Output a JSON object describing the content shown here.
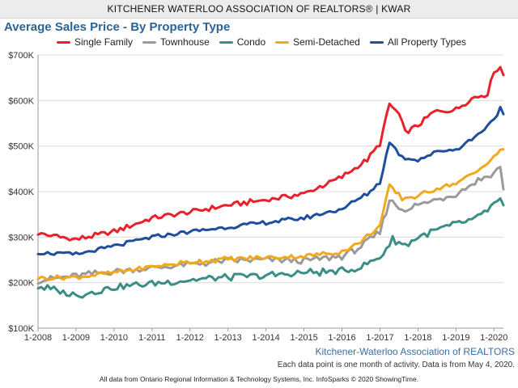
{
  "header": {
    "title": "KITCHENER WATERLOO ASSOCIATION OF REALTORS® | KWAR"
  },
  "source_label": "Kitchener-Waterloo Association of REALTORS",
  "note": "Each data point is one month of activity. Data is from May 4, 2020.",
  "footer": "All data from Ontario Regional Information & Technology Systems, Inc. InfoSparks © 2020 ShowingTime.",
  "chart_data": {
    "type": "line",
    "title": "Average Sales Price - By Property Type",
    "xlabel": "",
    "ylabel": "",
    "ylim": [
      100000,
      700000
    ],
    "xlim": [
      "2008-01",
      "2020-04"
    ],
    "x_ticks": [
      "1-2008",
      "1-2009",
      "1-2010",
      "1-2011",
      "1-2012",
      "1-2013",
      "1-2014",
      "1-2015",
      "1-2016",
      "1-2017",
      "1-2018",
      "1-2019",
      "1-2020"
    ],
    "y_ticks": [
      "$100K",
      "$200K",
      "$300K",
      "$400K",
      "$500K",
      "$600K",
      "$700K"
    ],
    "grid": "horizontal",
    "legend_position": "top",
    "series": [
      {
        "name": "Single Family",
        "color": "#e8212b",
        "keypoints": [
          [
            "2008-01",
            308000
          ],
          [
            "2009-01",
            295000
          ],
          [
            "2010-01",
            312000
          ],
          [
            "2011-01",
            342000
          ],
          [
            "2012-01",
            355000
          ],
          [
            "2013-01",
            370000
          ],
          [
            "2014-01",
            382000
          ],
          [
            "2015-01",
            395000
          ],
          [
            "2016-01",
            432000
          ],
          [
            "2016-09",
            470000
          ],
          [
            "2017-01",
            505000
          ],
          [
            "2017-04",
            592000
          ],
          [
            "2017-07",
            570000
          ],
          [
            "2017-09",
            530000
          ],
          [
            "2018-01",
            545000
          ],
          [
            "2018-06",
            575000
          ],
          [
            "2019-01",
            580000
          ],
          [
            "2019-06",
            605000
          ],
          [
            "2019-11",
            615000
          ],
          [
            "2020-01",
            665000
          ],
          [
            "2020-03",
            672000
          ],
          [
            "2020-04",
            656000
          ]
        ]
      },
      {
        "name": "Townhouse",
        "color": "#9a9a9a",
        "keypoints": [
          [
            "2008-01",
            205000
          ],
          [
            "2009-01",
            215000
          ],
          [
            "2010-01",
            225000
          ],
          [
            "2011-01",
            232000
          ],
          [
            "2012-01",
            240000
          ],
          [
            "2013-01",
            248000
          ],
          [
            "2014-01",
            250000
          ],
          [
            "2015-01",
            248000
          ],
          [
            "2016-01",
            258000
          ],
          [
            "2016-06",
            275000
          ],
          [
            "2017-01",
            310000
          ],
          [
            "2017-04",
            382000
          ],
          [
            "2017-08",
            360000
          ],
          [
            "2018-01",
            370000
          ],
          [
            "2018-08",
            385000
          ],
          [
            "2019-01",
            395000
          ],
          [
            "2019-08",
            425000
          ],
          [
            "2020-01",
            440000
          ],
          [
            "2020-03",
            458000
          ],
          [
            "2020-04",
            405000
          ]
        ]
      },
      {
        "name": "Condo",
        "color": "#3a8e85",
        "keypoints": [
          [
            "2008-01",
            192000
          ],
          [
            "2009-01",
            172000
          ],
          [
            "2010-01",
            190000
          ],
          [
            "2011-01",
            198000
          ],
          [
            "2012-01",
            206000
          ],
          [
            "2013-01",
            212000
          ],
          [
            "2014-01",
            215000
          ],
          [
            "2015-01",
            222000
          ],
          [
            "2016-01",
            225000
          ],
          [
            "2016-06",
            232000
          ],
          [
            "2017-01",
            255000
          ],
          [
            "2017-05",
            295000
          ],
          [
            "2017-09",
            282000
          ],
          [
            "2018-01",
            300000
          ],
          [
            "2018-08",
            318000
          ],
          [
            "2019-01",
            328000
          ],
          [
            "2019-08",
            342000
          ],
          [
            "2020-01",
            372000
          ],
          [
            "2020-03",
            380000
          ],
          [
            "2020-04",
            370000
          ]
        ]
      },
      {
        "name": "Semi-Detached",
        "color": "#f2a81c",
        "keypoints": [
          [
            "2008-01",
            210000
          ],
          [
            "2009-01",
            212000
          ],
          [
            "2010-01",
            222000
          ],
          [
            "2011-01",
            235000
          ],
          [
            "2012-01",
            245000
          ],
          [
            "2013-01",
            252000
          ],
          [
            "2014-01",
            255000
          ],
          [
            "2015-01",
            258000
          ],
          [
            "2016-01",
            268000
          ],
          [
            "2016-06",
            285000
          ],
          [
            "2017-01",
            325000
          ],
          [
            "2017-04",
            412000
          ],
          [
            "2017-08",
            385000
          ],
          [
            "2018-01",
            390000
          ],
          [
            "2018-08",
            410000
          ],
          [
            "2019-01",
            418000
          ],
          [
            "2019-08",
            445000
          ],
          [
            "2020-01",
            478000
          ],
          [
            "2020-04",
            493000
          ]
        ]
      },
      {
        "name": "All Property Types",
        "color": "#1f4e9c",
        "keypoints": [
          [
            "2008-01",
            266000
          ],
          [
            "2009-01",
            262000
          ],
          [
            "2010-01",
            280000
          ],
          [
            "2011-01",
            300000
          ],
          [
            "2012-01",
            312000
          ],
          [
            "2013-01",
            322000
          ],
          [
            "2014-01",
            332000
          ],
          [
            "2015-01",
            342000
          ],
          [
            "2016-01",
            362000
          ],
          [
            "2016-09",
            395000
          ],
          [
            "2017-01",
            420000
          ],
          [
            "2017-04",
            510000
          ],
          [
            "2017-08",
            475000
          ],
          [
            "2018-01",
            470000
          ],
          [
            "2018-08",
            490000
          ],
          [
            "2019-01",
            492000
          ],
          [
            "2019-08",
            525000
          ],
          [
            "2020-01",
            560000
          ],
          [
            "2020-03",
            582000
          ],
          [
            "2020-04",
            570000
          ]
        ]
      }
    ]
  }
}
